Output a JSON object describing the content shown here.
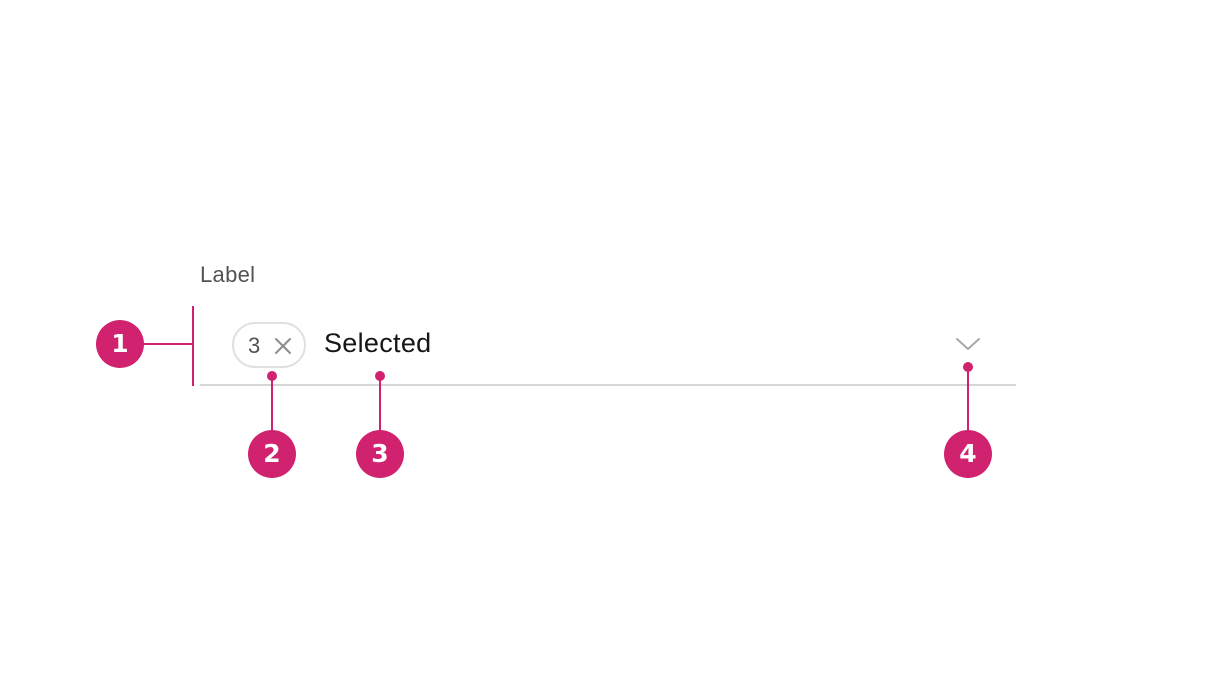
{
  "field": {
    "label": "Label",
    "tag_count": "3",
    "selected_text": "Selected"
  },
  "icons": {
    "tag_close": "close-icon",
    "dropdown": "chevron-down-icon"
  },
  "annotations": {
    "markers": [
      "1",
      "2",
      "3",
      "4"
    ]
  },
  "colors": {
    "annotation": "#d0226f",
    "field_border": "#d6d6d6",
    "tag_border": "#e0e0e0",
    "text_primary": "#161616",
    "text_secondary": "#525252"
  }
}
